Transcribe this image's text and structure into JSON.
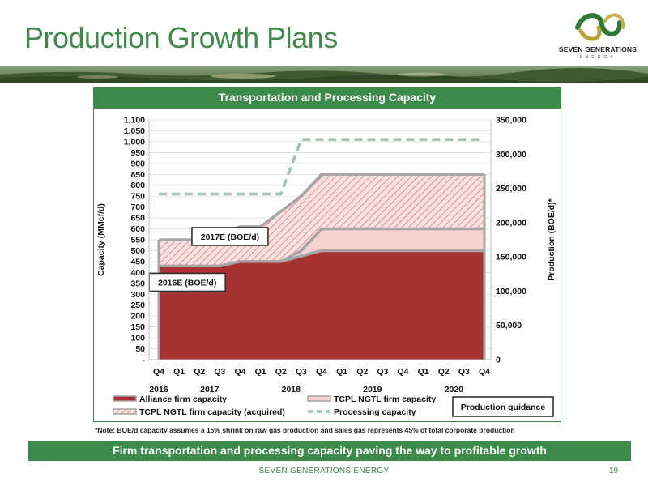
{
  "slide": {
    "title": "Production Growth Plans",
    "chart_header": "Transportation and Processing Capacity",
    "note": "*Note: BOE/d capacity assumes a 15% shrink on raw gas production and sales gas represents 45% of total corporate production",
    "footer_message": "Firm transportation and processing capacity paving the way to profitable growth",
    "company": "SEVEN GENERATIONS ENERGY",
    "page_number": "19",
    "logo_name": "SEVEN GENERATIONS",
    "logo_sub": "ENERGY"
  },
  "chart_data": {
    "type": "area",
    "x": [
      "Q4",
      "Q1",
      "Q2",
      "Q3",
      "Q4",
      "Q1",
      "Q2",
      "Q3",
      "Q4",
      "Q1",
      "Q2",
      "Q3",
      "Q4",
      "Q1",
      "Q2",
      "Q3",
      "Q4"
    ],
    "year_labels": [
      "2016",
      "2017",
      "2018",
      "2019",
      "2020"
    ],
    "year_label_positions": [
      0,
      2.5,
      6.5,
      10.5,
      14.5
    ],
    "ylabel": "Capacity (MMcf/d)",
    "y2label": "Production (BOE/d)*",
    "ylim": [
      0,
      1100
    ],
    "y2lim": [
      0,
      350000
    ],
    "yticks": [
      "-",
      "50",
      "100",
      "150",
      "200",
      "250",
      "300",
      "350",
      "400",
      "450",
      "500",
      "550",
      "600",
      "650",
      "700",
      "750",
      "800",
      "850",
      "900",
      "950",
      "1,000",
      "1,050",
      "1,100"
    ],
    "y2ticks": [
      "0",
      "50,000",
      "100,000",
      "150,000",
      "200,000",
      "250,000",
      "300,000",
      "350,000"
    ],
    "series": [
      {
        "name": "Alliance firm capacity",
        "values": [
          430,
          430,
          430,
          430,
          450,
          450,
          450,
          475,
          500,
          500,
          500,
          500,
          500,
          500,
          500,
          500,
          500
        ]
      },
      {
        "name": "TCPL NGTL firm capacity",
        "values": [
          430,
          430,
          430,
          430,
          450,
          450,
          450,
          475,
          500,
          500,
          500,
          500,
          500,
          500,
          500,
          500,
          500
        ],
        "top": [
          430,
          430,
          430,
          430,
          450,
          450,
          450,
          500,
          600,
          600,
          600,
          600,
          600,
          600,
          600,
          600,
          600
        ]
      },
      {
        "name": "TCPL NGTL firm capacity (acquired)",
        "values": [
          550,
          550,
          550,
          580,
          610,
          610,
          680,
          750,
          850,
          850,
          850,
          850,
          850,
          850,
          850,
          850,
          850
        ]
      },
      {
        "name": "Processing capacity",
        "values": [
          760,
          760,
          760,
          760,
          760,
          760,
          760,
          1010,
          1010,
          1010,
          1010,
          1010,
          1010,
          1010,
          1010,
          1010,
          1010
        ]
      }
    ],
    "annotations": [
      {
        "text": "2016E (BOE/d)",
        "x": 1.4,
        "y": 355
      },
      {
        "text": "2017E (BOE/d)",
        "x": 3.5,
        "y": 565
      }
    ],
    "production_guidance_label": "Production guidance",
    "grid": true,
    "legend_placement": "bottom"
  }
}
